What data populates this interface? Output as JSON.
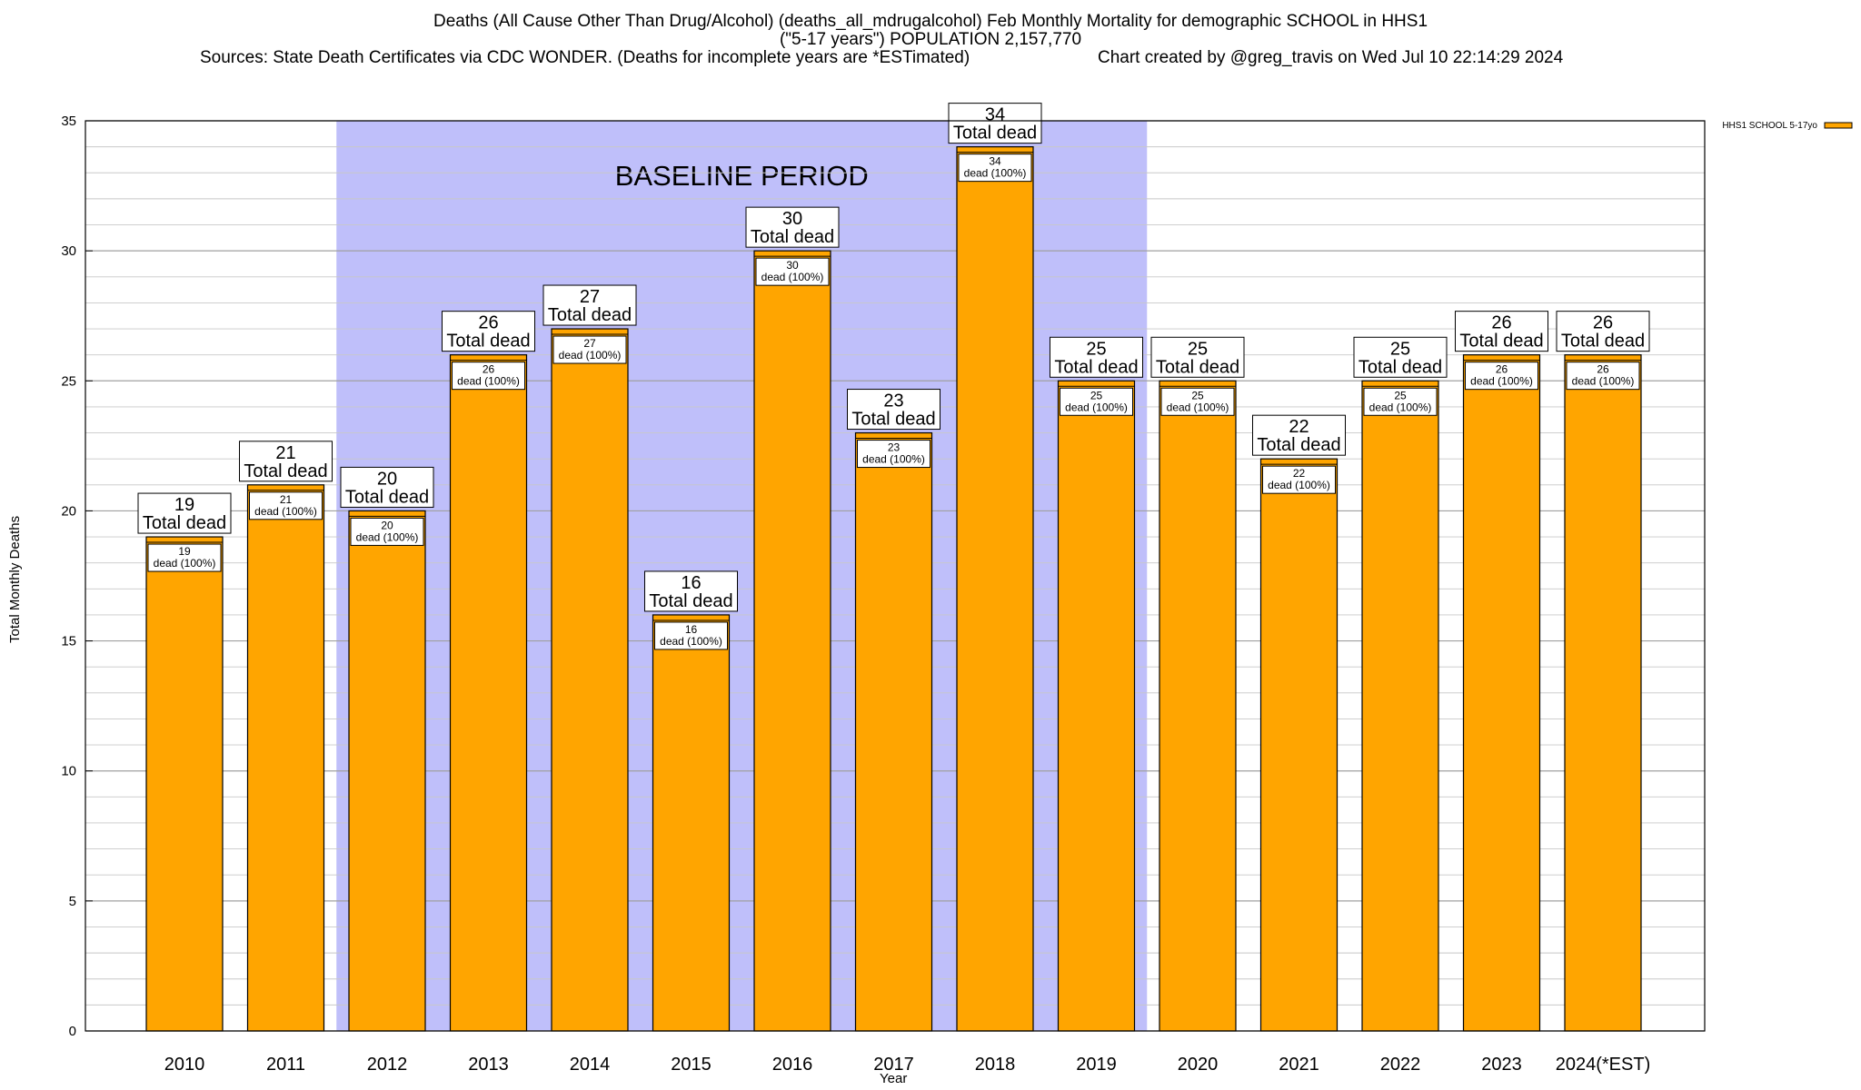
{
  "chart_data": {
    "type": "bar",
    "title": "Deaths (All Cause Other Than Drug/Alcohol) (deaths_all_mdrugalcohol) Feb Monthly Mortality for demographic SCHOOL in HHS1",
    "subtitle": "(\"5-17 years\") POPULATION 2,157,770",
    "sources": "Sources: State Death Certificates via CDC WONDER. (Deaths for incomplete years are *ESTimated)",
    "credit": "Chart created by @greg_travis on Wed Jul 10 22:14:29 2024",
    "xlabel": "Year",
    "ylabel": "Total Monthly Deaths",
    "ylim": [
      0,
      35
    ],
    "yticks": [
      0,
      5,
      10,
      15,
      20,
      25,
      30,
      35
    ],
    "minor_grid_step": 1,
    "grid": true,
    "legend_position": "top-right",
    "baseline_label": "BASELINE PERIOD",
    "baseline_range": [
      "2012",
      "2019"
    ],
    "categories": [
      "2010",
      "2011",
      "2012",
      "2013",
      "2014",
      "2015",
      "2016",
      "2017",
      "2018",
      "2019",
      "2020",
      "2021",
      "2022",
      "2023",
      "2024(*EST)"
    ],
    "series": [
      {
        "name": "HHS1 SCHOOL 5-17yo",
        "color": "#ffa500",
        "values": [
          19,
          21,
          20,
          26,
          27,
          16,
          30,
          23,
          34,
          25,
          25,
          22,
          25,
          26,
          26
        ]
      }
    ],
    "top_label_suffix": "Total dead",
    "inner_label_suffix": "dead (100%)",
    "baseline_color": "#bfbffa"
  }
}
